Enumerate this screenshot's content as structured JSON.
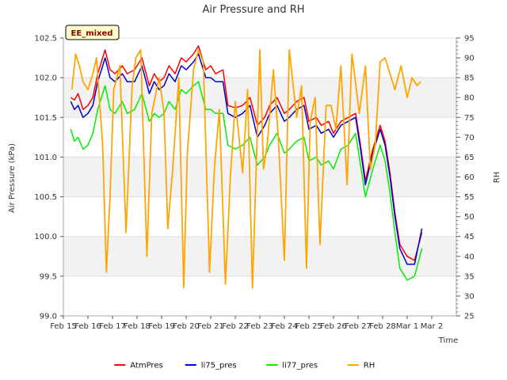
{
  "chart_data": {
    "type": "line",
    "title": "Air Pressure and RH",
    "xlabel": "Time",
    "ylabel": "Air Pressure (kPa)",
    "y2label": "RH",
    "badge": "EE_mixed",
    "xlim": [
      0,
      16
    ],
    "ylim": [
      99.0,
      102.5
    ],
    "y2lim": [
      25,
      95
    ],
    "x_tick_labels": [
      "Feb 15",
      "Feb 16",
      "Feb 17",
      "Feb 18",
      "Feb 19",
      "Feb 20",
      "Feb 21",
      "Feb 22",
      "Feb 23",
      "Feb 24",
      "Feb 25",
      "Feb 26",
      "Feb 27",
      "Feb 28",
      "Mar 1",
      "Mar 2"
    ],
    "y_ticks": [
      99.0,
      99.5,
      100.0,
      100.5,
      101.0,
      101.5,
      102.0,
      102.5
    ],
    "y_tick_labels": [
      "99.0",
      "99.5",
      "100.0",
      "100.5",
      "101.0",
      "101.5",
      "102.0",
      "102.5"
    ],
    "y2_ticks": [
      25,
      30,
      35,
      40,
      45,
      50,
      55,
      60,
      65,
      70,
      75,
      80,
      85,
      90,
      95
    ],
    "y2_tick_labels": [
      "25",
      "30",
      "35",
      "40",
      "45",
      "50",
      "55",
      "60",
      "65",
      "70",
      "75",
      "80",
      "85",
      "90",
      "95"
    ],
    "legend_position": "bottom",
    "grid": "horizontal-bands",
    "series": [
      {
        "name": "AtmPres",
        "color": "#ff0000",
        "axis": "left",
        "x": [
          0.3,
          0.45,
          0.6,
          0.8,
          1.0,
          1.2,
          1.4,
          1.7,
          1.9,
          2.1,
          2.4,
          2.6,
          2.9,
          3.2,
          3.5,
          3.7,
          3.9,
          4.1,
          4.3,
          4.55,
          4.8,
          5.0,
          5.3,
          5.5,
          5.8,
          6.0,
          6.2,
          6.5,
          6.7,
          7.0,
          7.3,
          7.6,
          7.9,
          8.2,
          8.4,
          8.7,
          9.0,
          9.2,
          9.5,
          9.8,
          10.0,
          10.3,
          10.5,
          10.8,
          11.0,
          11.3,
          11.6,
          11.9,
          12.1,
          12.3,
          12.6,
          12.9,
          13.1,
          13.3,
          13.5,
          13.7,
          14.0,
          14.3,
          14.6
        ],
        "values": [
          101.75,
          101.72,
          101.8,
          101.6,
          101.65,
          101.75,
          102.05,
          102.35,
          102.1,
          102.05,
          102.15,
          102.05,
          102.1,
          102.25,
          101.9,
          102.05,
          101.95,
          102.0,
          102.15,
          102.05,
          102.25,
          102.2,
          102.3,
          102.4,
          102.1,
          102.15,
          102.05,
          102.1,
          101.65,
          101.62,
          101.65,
          101.75,
          101.4,
          101.5,
          101.65,
          101.75,
          101.55,
          101.6,
          101.7,
          101.75,
          101.45,
          101.5,
          101.4,
          101.45,
          101.3,
          101.45,
          101.5,
          101.55,
          101.15,
          100.7,
          101.1,
          101.4,
          101.2,
          100.8,
          100.3,
          99.9,
          99.75,
          99.7,
          100.05
        ]
      },
      {
        "name": "li75_pres",
        "color": "#0000cc",
        "axis": "left",
        "x": [
          0.3,
          0.45,
          0.6,
          0.8,
          1.0,
          1.2,
          1.4,
          1.7,
          1.9,
          2.1,
          2.4,
          2.6,
          2.9,
          3.2,
          3.5,
          3.7,
          3.9,
          4.1,
          4.3,
          4.55,
          4.8,
          5.0,
          5.3,
          5.5,
          5.8,
          6.0,
          6.2,
          6.5,
          6.7,
          7.0,
          7.3,
          7.6,
          7.9,
          8.2,
          8.4,
          8.7,
          9.0,
          9.2,
          9.5,
          9.8,
          10.0,
          10.3,
          10.5,
          10.8,
          11.0,
          11.3,
          11.6,
          11.9,
          12.1,
          12.3,
          12.6,
          12.9,
          13.1,
          13.3,
          13.5,
          13.7,
          14.0,
          14.3,
          14.6
        ],
        "values": [
          101.7,
          101.6,
          101.65,
          101.5,
          101.55,
          101.65,
          101.95,
          102.25,
          102.0,
          101.95,
          102.05,
          101.95,
          101.95,
          102.15,
          101.8,
          101.95,
          101.85,
          101.9,
          102.05,
          101.95,
          102.15,
          102.1,
          102.2,
          102.3,
          102.0,
          102.0,
          101.95,
          101.95,
          101.55,
          101.5,
          101.55,
          101.65,
          101.25,
          101.4,
          101.55,
          101.65,
          101.45,
          101.5,
          101.6,
          101.65,
          101.35,
          101.4,
          101.3,
          101.35,
          101.25,
          101.4,
          101.45,
          101.5,
          101.1,
          100.65,
          101.05,
          101.35,
          101.15,
          100.75,
          100.25,
          99.85,
          99.65,
          99.65,
          100.1
        ]
      },
      {
        "name": "li77_pres",
        "color": "#00ee00",
        "axis": "left",
        "x": [
          0.3,
          0.45,
          0.6,
          0.8,
          1.0,
          1.2,
          1.4,
          1.7,
          1.9,
          2.1,
          2.4,
          2.6,
          2.9,
          3.2,
          3.5,
          3.7,
          3.9,
          4.1,
          4.3,
          4.55,
          4.8,
          5.0,
          5.3,
          5.5,
          5.8,
          6.0,
          6.2,
          6.5,
          6.7,
          7.0,
          7.3,
          7.6,
          7.9,
          8.2,
          8.4,
          8.7,
          9.0,
          9.2,
          9.5,
          9.8,
          10.0,
          10.3,
          10.5,
          10.8,
          11.0,
          11.3,
          11.6,
          11.9,
          12.1,
          12.3,
          12.6,
          12.9,
          13.1,
          13.3,
          13.5,
          13.7,
          14.0,
          14.3,
          14.6
        ],
        "values": [
          101.35,
          101.2,
          101.25,
          101.1,
          101.15,
          101.3,
          101.6,
          101.9,
          101.6,
          101.55,
          101.7,
          101.55,
          101.6,
          101.8,
          101.45,
          101.55,
          101.5,
          101.55,
          101.7,
          101.6,
          101.85,
          101.8,
          101.9,
          101.95,
          101.6,
          101.6,
          101.55,
          101.55,
          101.15,
          101.1,
          101.15,
          101.25,
          100.9,
          101.0,
          101.15,
          101.3,
          101.05,
          101.1,
          101.2,
          101.25,
          100.95,
          101.0,
          100.9,
          100.95,
          100.85,
          101.1,
          101.15,
          101.3,
          100.9,
          100.5,
          100.85,
          101.15,
          100.95,
          100.55,
          100.05,
          99.6,
          99.45,
          99.5,
          99.85
        ]
      },
      {
        "name": "RH",
        "color": "#ffa500",
        "axis": "right",
        "x": [
          0.35,
          0.5,
          0.65,
          0.8,
          1.0,
          1.2,
          1.35,
          1.6,
          1.75,
          1.9,
          2.05,
          2.3,
          2.55,
          2.8,
          2.95,
          3.15,
          3.4,
          3.6,
          3.9,
          4.1,
          4.25,
          4.45,
          4.7,
          4.9,
          5.05,
          5.3,
          5.5,
          5.7,
          5.95,
          6.15,
          6.35,
          6.6,
          6.8,
          7.0,
          7.3,
          7.5,
          7.7,
          8.0,
          8.15,
          8.3,
          8.55,
          8.75,
          9.0,
          9.2,
          9.5,
          9.7,
          9.9,
          10.05,
          10.25,
          10.45,
          10.7,
          10.9,
          11.1,
          11.3,
          11.55,
          11.75,
          12.05,
          12.3,
          12.5,
          12.7,
          12.9,
          13.1,
          13.3,
          13.5,
          13.75,
          14.0,
          14.2,
          14.4,
          14.55
        ],
        "values": [
          82,
          91,
          88,
          84,
          82,
          86,
          90,
          68,
          36,
          55,
          82,
          88,
          46,
          83,
          90,
          92,
          40,
          76,
          85,
          76,
          47,
          62,
          85,
          32,
          66,
          87,
          92,
          89,
          36,
          62,
          77,
          33,
          60,
          79,
          61,
          82,
          32,
          92,
          62,
          68,
          87,
          70,
          39,
          92,
          75,
          83,
          37,
          74,
          80,
          43,
          78,
          78,
          72,
          88,
          58,
          91,
          76,
          88,
          62,
          68,
          89,
          90,
          86,
          82,
          88,
          80,
          85,
          83,
          84
        ]
      }
    ]
  }
}
